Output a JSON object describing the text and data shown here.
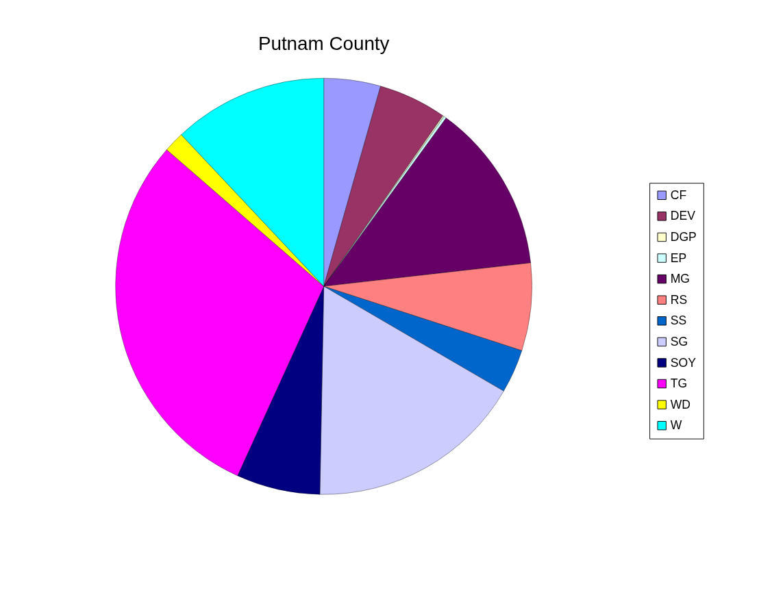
{
  "chart_data": {
    "type": "pie",
    "title": "Putnam County",
    "categories": [
      "CF",
      "DEV",
      "DGP",
      "EP",
      "MG",
      "RS",
      "SS",
      "SG",
      "SOY",
      "TG",
      "WD",
      "W"
    ],
    "values": [
      4.4,
      5.3,
      0.1,
      0.2,
      13.2,
      6.8,
      3.4,
      16.9,
      6.5,
      29.6,
      1.6,
      12.0
    ],
    "colors": [
      "#9999ff",
      "#993366",
      "#ffffcc",
      "#ccffff",
      "#660066",
      "#ff8080",
      "#0066cc",
      "#ccccff",
      "#000080",
      "#ff00ff",
      "#ffff00",
      "#00ffff"
    ],
    "legend": "right"
  }
}
